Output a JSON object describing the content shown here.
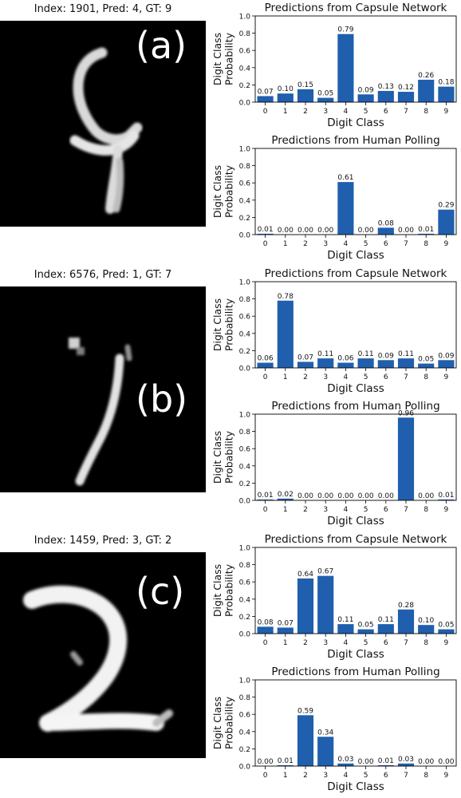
{
  "panels": [
    {
      "image_title": "Index: 1901, Pred: 4, GT: 9",
      "letter": "(a)",
      "digit_icon": "handwritten-digit-9-icon"
    },
    {
      "image_title": "Index: 6576, Pred: 1, GT: 7",
      "letter": "(b)",
      "digit_icon": "handwritten-digit-7-icon"
    },
    {
      "image_title": "Index: 1459, Pred: 3, GT: 2",
      "letter": "(c)",
      "digit_icon": "handwritten-digit-2-icon"
    }
  ],
  "chart_data": [
    {
      "type": "bar",
      "title": "Predictions from Capsule Network",
      "xlabel": "Digit Class",
      "ylabel": "Digit Class Probability",
      "categories": [
        "0",
        "1",
        "2",
        "3",
        "4",
        "5",
        "6",
        "7",
        "8",
        "9"
      ],
      "values": [
        0.07,
        0.1,
        0.15,
        0.05,
        0.79,
        0.09,
        0.13,
        0.12,
        0.26,
        0.18
      ],
      "value_labels": [
        "0.07",
        "0.10",
        "0.15",
        "0.05",
        "0.79",
        "0.09",
        "0.13",
        "0.12",
        "0.26",
        "0.18"
      ],
      "ylim": [
        0,
        1
      ],
      "yticks": [
        "0.0",
        "0.2",
        "0.4",
        "0.6",
        "0.8",
        "1.0"
      ],
      "color": "#1f5fad"
    },
    {
      "type": "bar",
      "title": "Predictions from Human Polling",
      "xlabel": "Digit Class",
      "ylabel": "Digit Class Probability",
      "categories": [
        "0",
        "1",
        "2",
        "3",
        "4",
        "5",
        "6",
        "7",
        "8",
        "9"
      ],
      "values": [
        0.01,
        0.0,
        0.0,
        0.0,
        0.61,
        0.0,
        0.08,
        0.0,
        0.01,
        0.29
      ],
      "value_labels": [
        "0.01",
        "0.00",
        "0.00",
        "0.00",
        "0.61",
        "0.00",
        "0.08",
        "0.00",
        "0.01",
        "0.29"
      ],
      "ylim": [
        0,
        1
      ],
      "yticks": [
        "0.0",
        "0.2",
        "0.4",
        "0.6",
        "0.8",
        "1.0"
      ],
      "color": "#1f5fad"
    },
    {
      "type": "bar",
      "title": "Predictions from Capsule Network",
      "xlabel": "Digit Class",
      "ylabel": "Digit Class Probability",
      "categories": [
        "0",
        "1",
        "2",
        "3",
        "4",
        "5",
        "6",
        "7",
        "8",
        "9"
      ],
      "values": [
        0.06,
        0.78,
        0.07,
        0.11,
        0.06,
        0.11,
        0.09,
        0.11,
        0.05,
        0.09
      ],
      "value_labels": [
        "0.06",
        "0.78",
        "0.07",
        "0.11",
        "0.06",
        "0.11",
        "0.09",
        "0.11",
        "0.05",
        "0.09"
      ],
      "ylim": [
        0,
        1
      ],
      "yticks": [
        "0.0",
        "0.2",
        "0.4",
        "0.6",
        "0.8",
        "1.0"
      ],
      "color": "#1f5fad"
    },
    {
      "type": "bar",
      "title": "Predictions from Human Polling",
      "xlabel": "Digit Class",
      "ylabel": "Digit Class Probability",
      "categories": [
        "0",
        "1",
        "2",
        "3",
        "4",
        "5",
        "6",
        "7",
        "8",
        "9"
      ],
      "values": [
        0.01,
        0.02,
        0.0,
        0.0,
        0.0,
        0.0,
        0.0,
        0.96,
        0.0,
        0.01
      ],
      "value_labels": [
        "0.01",
        "0.02",
        "0.00",
        "0.00",
        "0.00",
        "0.00",
        "0.00",
        "0.96",
        "0.00",
        "0.01"
      ],
      "ylim": [
        0,
        1
      ],
      "yticks": [
        "0.0",
        "0.2",
        "0.4",
        "0.6",
        "0.8",
        "1.0"
      ],
      "color": "#1f5fad"
    },
    {
      "type": "bar",
      "title": "Predictions from Capsule Network",
      "xlabel": "Digit Class",
      "ylabel": "Digit Class Probability",
      "categories": [
        "0",
        "1",
        "2",
        "3",
        "4",
        "5",
        "6",
        "7",
        "8",
        "9"
      ],
      "values": [
        0.08,
        0.07,
        0.64,
        0.67,
        0.11,
        0.05,
        0.11,
        0.28,
        0.1,
        0.05
      ],
      "value_labels": [
        "0.08",
        "0.07",
        "0.64",
        "0.67",
        "0.11",
        "0.05",
        "0.11",
        "0.28",
        "0.10",
        "0.05"
      ],
      "ylim": [
        0,
        1
      ],
      "yticks": [
        "0.0",
        "0.2",
        "0.4",
        "0.6",
        "0.8",
        "1.0"
      ],
      "color": "#1f5fad"
    },
    {
      "type": "bar",
      "title": "Predictions from Human Polling",
      "xlabel": "Digit Class",
      "ylabel": "Digit Class Probability",
      "categories": [
        "0",
        "1",
        "2",
        "3",
        "4",
        "5",
        "6",
        "7",
        "8",
        "9"
      ],
      "values": [
        0.0,
        0.01,
        0.59,
        0.34,
        0.03,
        0.0,
        0.01,
        0.03,
        0.0,
        0.0
      ],
      "value_labels": [
        "0.00",
        "0.01",
        "0.59",
        "0.34",
        "0.03",
        "0.00",
        "0.01",
        "0.03",
        "0.00",
        "0.00"
      ],
      "ylim": [
        0,
        1
      ],
      "yticks": [
        "0.0",
        "0.2",
        "0.4",
        "0.6",
        "0.8",
        "1.0"
      ],
      "color": "#1f5fad"
    }
  ]
}
